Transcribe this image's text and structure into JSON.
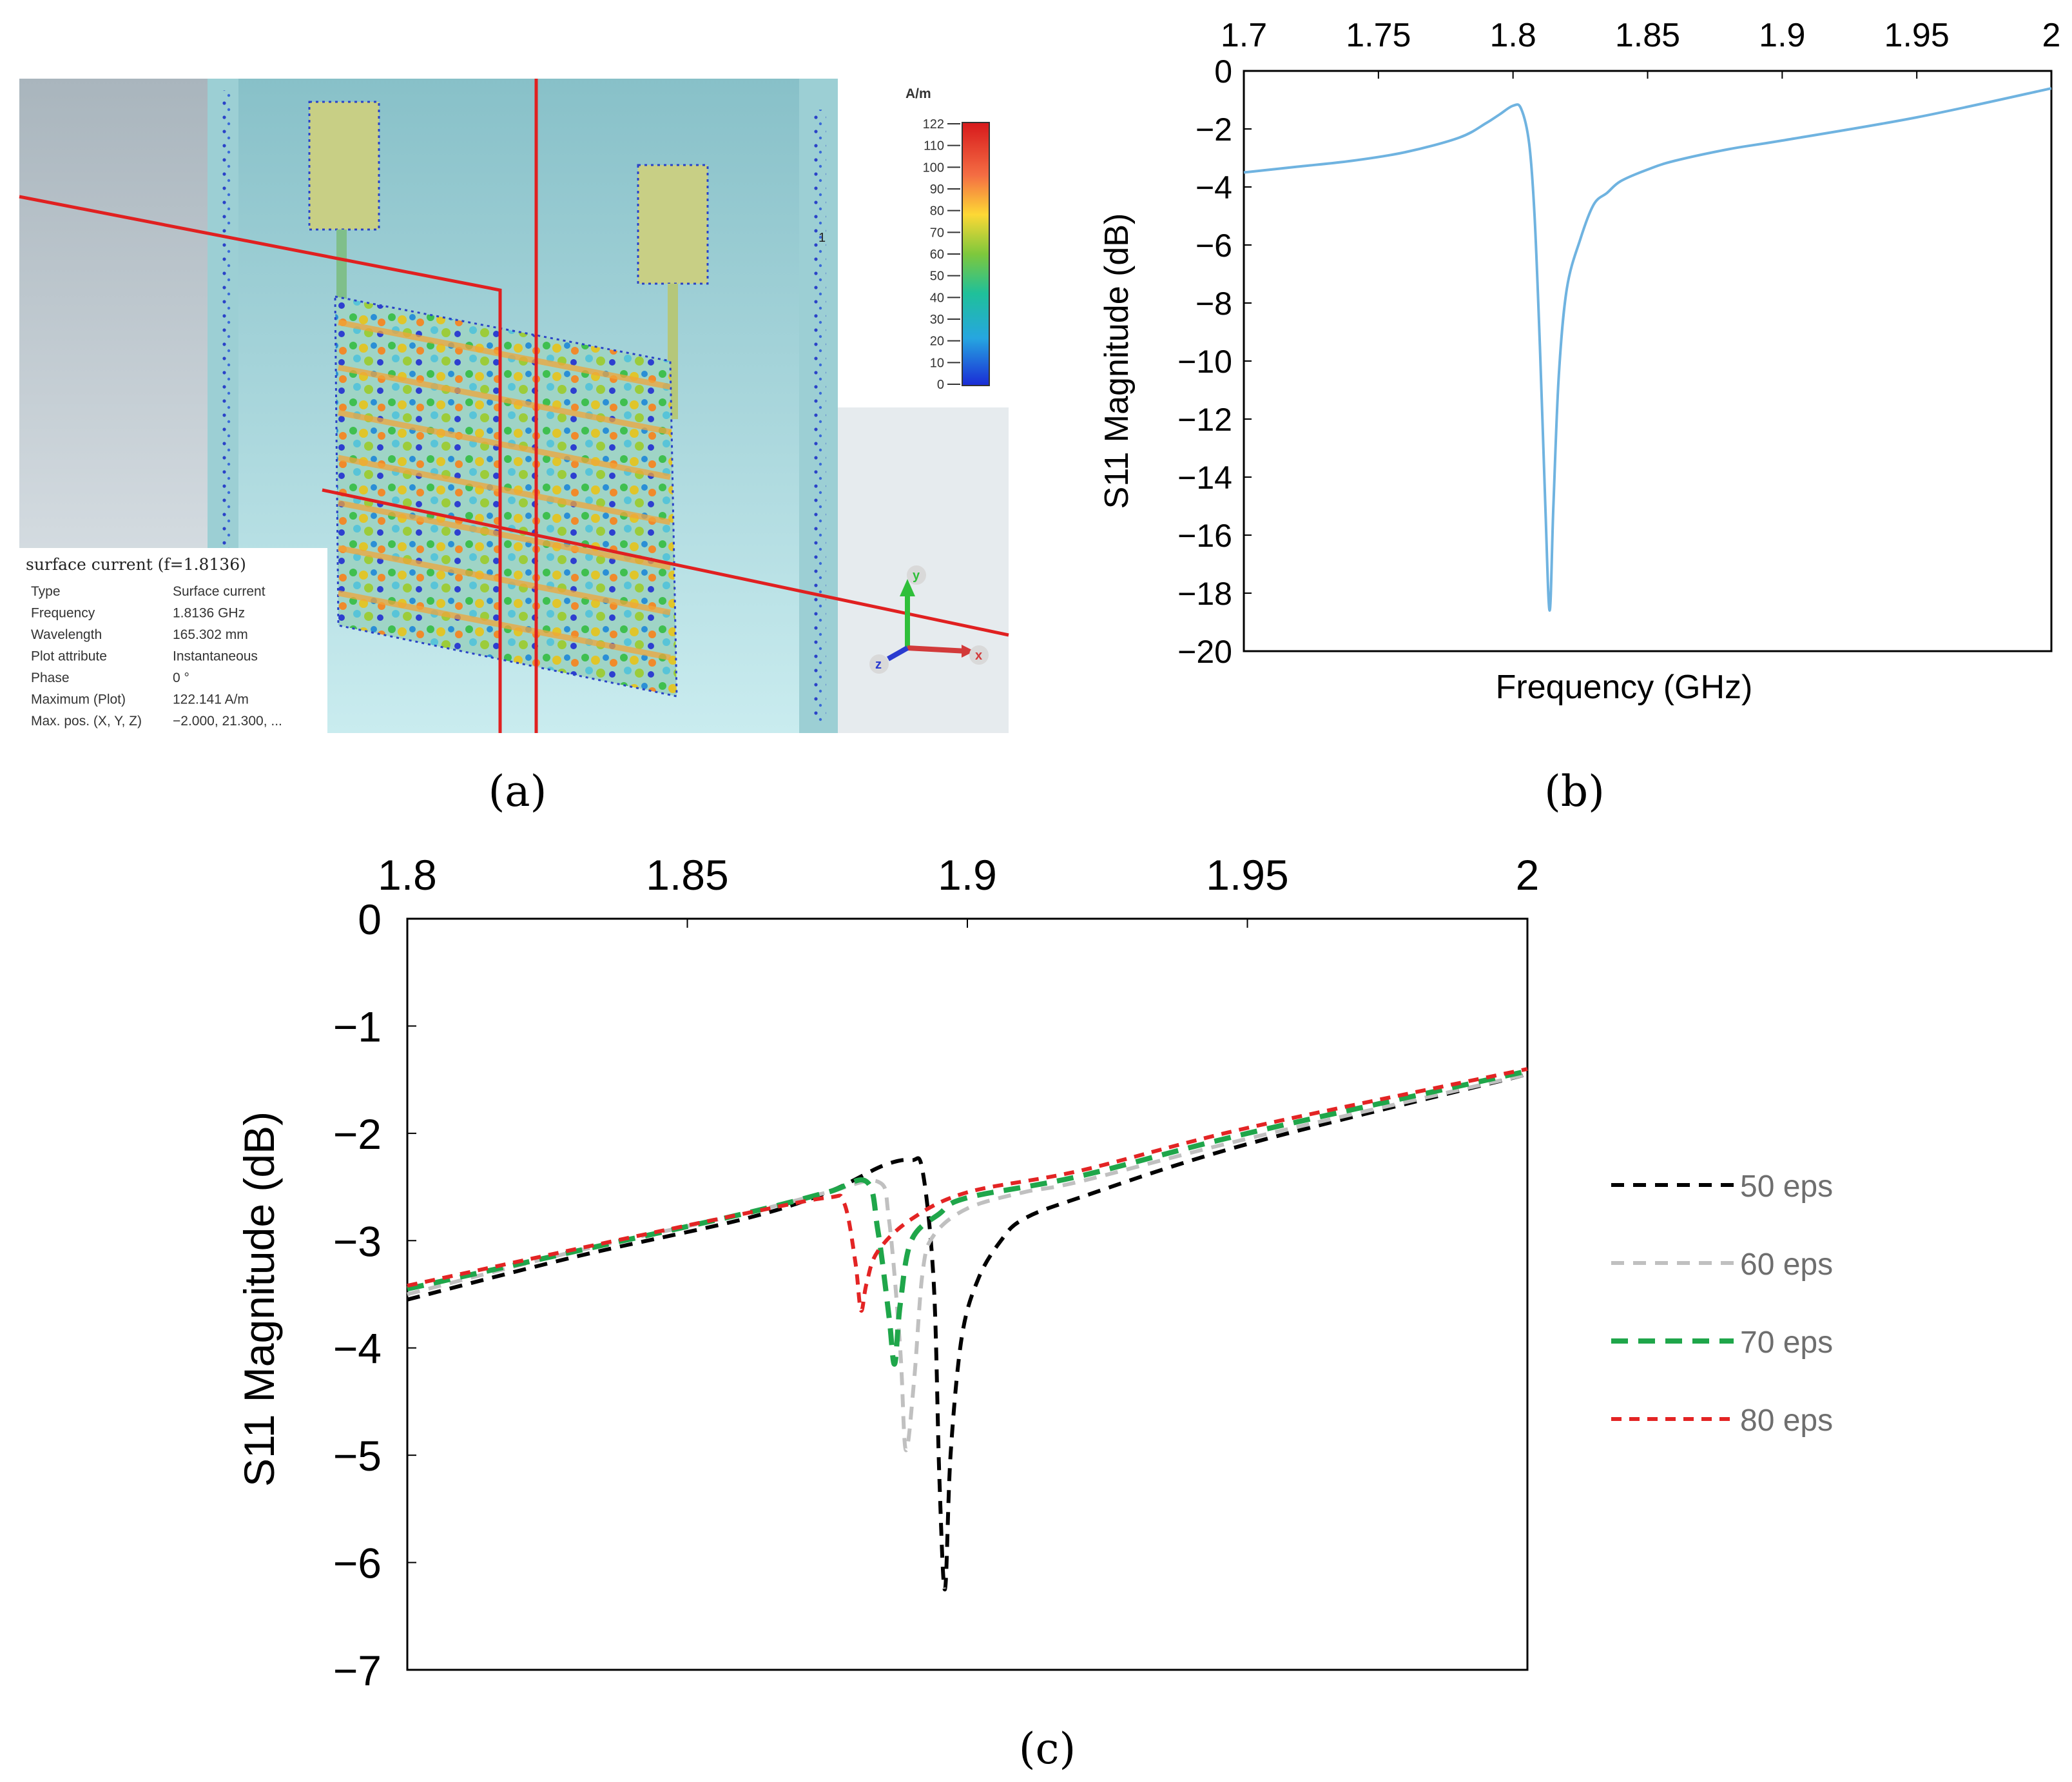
{
  "panel_labels": {
    "a": "(a)",
    "b": "(b)",
    "c": "(c)"
  },
  "colors": {
    "sim_bg": "#a8c8cc",
    "board": "#8fc9cf",
    "patch": "#c8cf85",
    "cut_line": "#e02020",
    "b_line": "#6fb3e0",
    "s50": "#000000",
    "s60": "#c0c0c0",
    "s70": "#1fa64a",
    "s80": "#e32424"
  },
  "simulation": {
    "colorbar_unit": "A/m",
    "colorbar_ticks": [
      "122",
      "110",
      "100",
      "90",
      "80",
      "70",
      "60",
      "50",
      "40",
      "30",
      "20",
      "10",
      "0"
    ],
    "axis_marker": "1",
    "triad": {
      "y": "y",
      "z": "z",
      "x": "x"
    },
    "info": {
      "title": "surface current (f=1.8136)",
      "rows": [
        {
          "key": "Type",
          "value": "Surface current"
        },
        {
          "key": "Frequency",
          "value": "1.8136 GHz"
        },
        {
          "key": "Wavelength",
          "value": "165.302 mm"
        },
        {
          "key": "Plot attribute",
          "value": "Instantaneous"
        },
        {
          "key": "Phase",
          "value": "0 °"
        },
        {
          "key": "Maximum (Plot)",
          "value": "122.141 A/m"
        },
        {
          "key": "Max. pos. (X, Y, Z)",
          "value": "−2.000,   21.300,   ..."
        }
      ]
    }
  },
  "chart_data": [
    {
      "id": "b",
      "type": "line",
      "title": "",
      "xlabel": "Frequency (GHz)",
      "ylabel": "S11 Magnitude (dB)",
      "xlim": [
        1.7,
        2.0
      ],
      "ylim": [
        -20,
        0
      ],
      "x_axis_position": "top",
      "xticks": [
        1.7,
        1.75,
        1.8,
        1.85,
        1.9,
        1.95,
        2.0
      ],
      "xtick_labels": [
        "1.7",
        "1.75",
        "1.8",
        "1.85",
        "1.9",
        "1.95",
        "2"
      ],
      "yticks": [
        0,
        -2,
        -4,
        -6,
        -8,
        -10,
        -12,
        -14,
        -16,
        -18,
        -20
      ],
      "ytick_labels": [
        "0",
        "−2",
        "−4",
        "−6",
        "−8",
        "−10",
        "−12",
        "−14",
        "−16",
        "−18",
        "−20"
      ],
      "series": [
        {
          "name": "S11",
          "x": [
            1.7,
            1.72,
            1.74,
            1.76,
            1.78,
            1.79,
            1.795,
            1.8,
            1.803,
            1.806,
            1.808,
            1.81,
            1.812,
            1.8136,
            1.815,
            1.817,
            1.82,
            1.825,
            1.83,
            1.835,
            1.84,
            1.85,
            1.86,
            1.88,
            1.9,
            1.95,
            2.0
          ],
          "y": [
            -3.5,
            -3.3,
            -3.1,
            -2.8,
            -2.3,
            -1.8,
            -1.5,
            -1.2,
            -1.3,
            -2.5,
            -5.0,
            -9.5,
            -15.0,
            -18.6,
            -15.0,
            -10.5,
            -7.5,
            -5.8,
            -4.6,
            -4.2,
            -3.8,
            -3.4,
            -3.1,
            -2.7,
            -2.4,
            -1.6,
            -0.6
          ]
        }
      ]
    },
    {
      "id": "c",
      "type": "line",
      "title": "",
      "xlabel": "",
      "ylabel": "S11 Magnitude (dB)",
      "xlim": [
        1.8,
        2.0
      ],
      "ylim": [
        -7,
        0
      ],
      "x_axis_position": "top",
      "xticks": [
        1.8,
        1.85,
        1.9,
        1.95,
        2.0
      ],
      "xtick_labels": [
        "1.8",
        "1.85",
        "1.9",
        "1.95",
        "2"
      ],
      "yticks": [
        0,
        -1,
        -2,
        -3,
        -4,
        -5,
        -6,
        -7
      ],
      "ytick_labels": [
        "0",
        "−1",
        "−2",
        "−3",
        "−4",
        "−5",
        "−6",
        "−7"
      ],
      "legend_position": "right",
      "series": [
        {
          "name": "50 eps",
          "color_key": "s50",
          "dash": "long",
          "x": [
            1.8,
            1.83,
            1.86,
            1.875,
            1.885,
            1.89,
            1.892,
            1.894,
            1.895,
            1.896,
            1.897,
            1.899,
            1.902,
            1.906,
            1.91,
            1.92,
            1.95,
            2.0
          ],
          "y": [
            -3.55,
            -3.15,
            -2.8,
            -2.55,
            -2.3,
            -2.25,
            -2.35,
            -3.4,
            -5.2,
            -6.25,
            -5.0,
            -3.9,
            -3.35,
            -3.0,
            -2.8,
            -2.6,
            -2.1,
            -1.45
          ]
        },
        {
          "name": "60 eps",
          "color_key": "s60",
          "dash": "long",
          "x": [
            1.8,
            1.83,
            1.86,
            1.875,
            1.884,
            1.886,
            1.888,
            1.889,
            1.8905,
            1.892,
            1.894,
            1.9,
            1.91,
            1.92,
            1.95,
            2.0
          ],
          "y": [
            -3.5,
            -3.1,
            -2.75,
            -2.55,
            -2.45,
            -2.8,
            -4.0,
            -4.95,
            -4.3,
            -3.3,
            -2.95,
            -2.7,
            -2.55,
            -2.45,
            -2.05,
            -1.45
          ]
        },
        {
          "name": "70 eps",
          "color_key": "s70",
          "dash": "long",
          "x": [
            1.8,
            1.83,
            1.86,
            1.875,
            1.882,
            1.884,
            1.886,
            1.887,
            1.888,
            1.89,
            1.895,
            1.9,
            1.92,
            1.95,
            2.0
          ],
          "y": [
            -3.45,
            -3.1,
            -2.75,
            -2.55,
            -2.45,
            -2.9,
            -3.7,
            -4.15,
            -3.6,
            -3.0,
            -2.75,
            -2.6,
            -2.4,
            -2.0,
            -1.42
          ]
        },
        {
          "name": "80 eps",
          "color_key": "s80",
          "dash": "short",
          "x": [
            1.8,
            1.83,
            1.86,
            1.875,
            1.878,
            1.88,
            1.881,
            1.882,
            1.884,
            1.89,
            1.9,
            1.92,
            1.95,
            2.0
          ],
          "y": [
            -3.42,
            -3.08,
            -2.75,
            -2.6,
            -2.65,
            -3.2,
            -3.65,
            -3.4,
            -3.1,
            -2.8,
            -2.55,
            -2.35,
            -1.95,
            -1.4
          ]
        }
      ]
    }
  ]
}
